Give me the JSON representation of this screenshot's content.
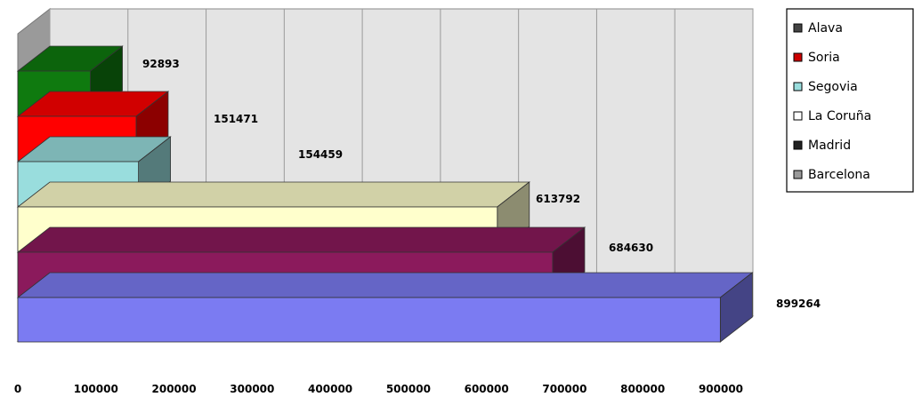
{
  "chart_data": {
    "type": "bar",
    "orientation": "horizontal",
    "three_d": true,
    "categories": [
      "Alava",
      "Soria",
      "Segovia",
      "La Coruña",
      "Madrid",
      "Barcelona"
    ],
    "series": [
      {
        "name": "Alava",
        "value": 92893,
        "color": "#0f7a0f"
      },
      {
        "name": "Soria",
        "value": 151471,
        "color": "#ff0000"
      },
      {
        "name": "Segovia",
        "value": 154459,
        "color": "#99dddd"
      },
      {
        "name": "La Coruña",
        "value": 613792,
        "color": "#ffffcc"
      },
      {
        "name": "Madrid",
        "value": 684630,
        "color": "#8b1a5c"
      },
      {
        "name": "Barcelona",
        "value": 899264,
        "color": "#7b7bf2"
      }
    ],
    "data_labels": [
      "92893",
      "151471",
      "154459",
      "613792",
      "684630",
      "899264"
    ],
    "x_ticks": [
      "0",
      "100000",
      "200000",
      "300000",
      "400000",
      "500000",
      "600000",
      "700000",
      "800000",
      "900000"
    ],
    "xlim": [
      0,
      900000
    ],
    "grid": true,
    "legend_position": "right",
    "legend": [
      {
        "label": "Alava",
        "color": "#444444"
      },
      {
        "label": "Soria",
        "color": "#cc0000"
      },
      {
        "label": "Segovia",
        "color": "#99dddd"
      },
      {
        "label": "La Coruña",
        "color": "#ffffff"
      },
      {
        "label": "Madrid",
        "color": "#222222"
      },
      {
        "label": "Barcelona",
        "color": "#999999"
      }
    ]
  }
}
